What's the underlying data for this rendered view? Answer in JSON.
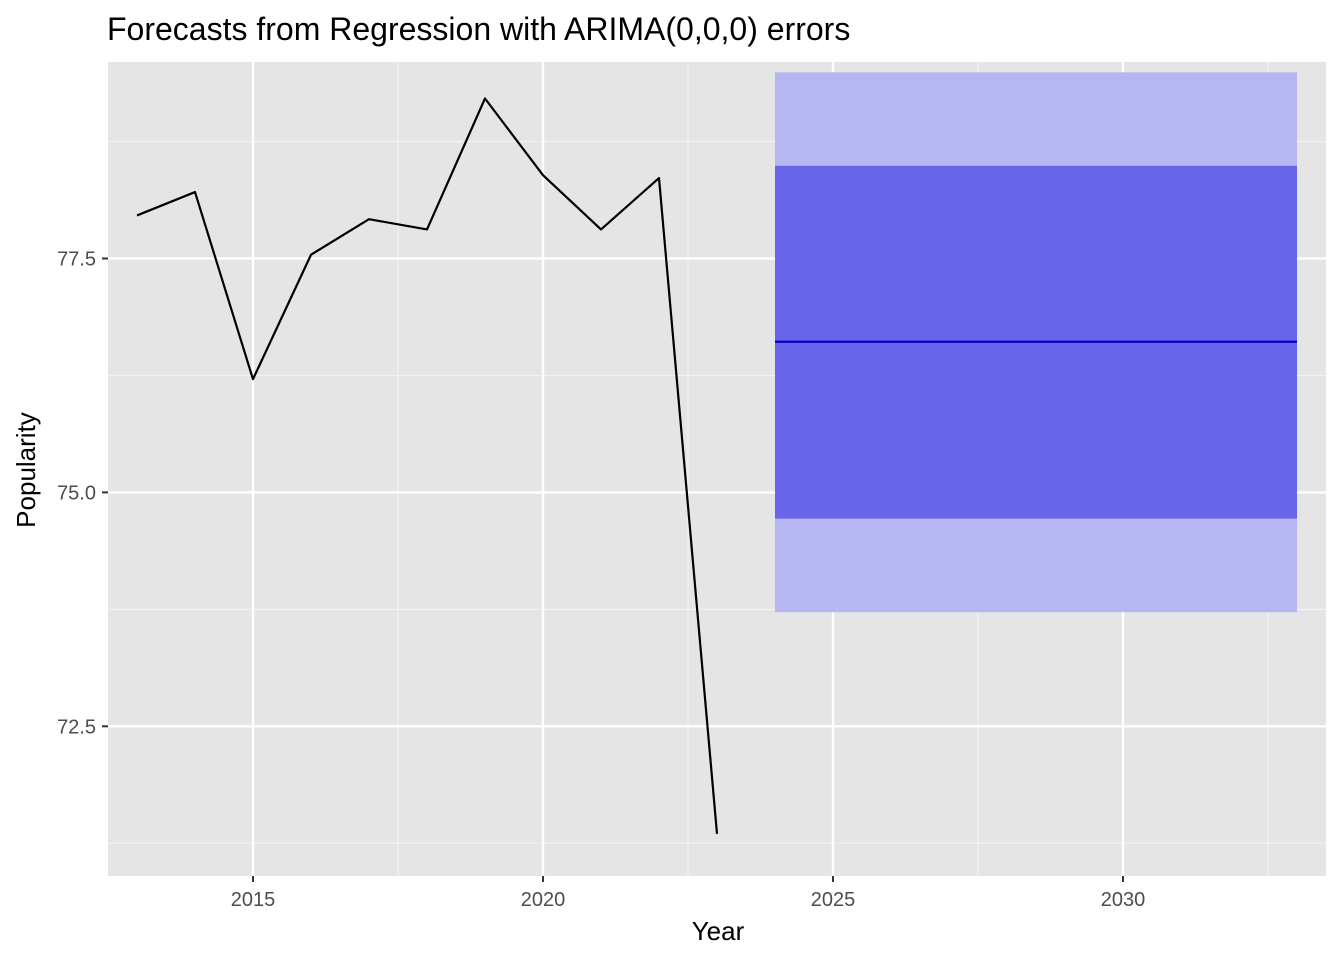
{
  "chart_data": {
    "type": "line",
    "title": "Forecasts from Regression with ARIMA(0,0,0) errors",
    "xlabel": "Year",
    "ylabel": "Popularity",
    "xlim": [
      2012.5,
      2033.5
    ],
    "ylim": [
      70.9,
      79.6
    ],
    "grid": true,
    "x_ticks": [
      2015,
      2020,
      2025,
      2030
    ],
    "x_tick_labels": [
      "2015",
      "2020",
      "2025",
      "2030"
    ],
    "y_ticks": [
      72.5,
      75.0,
      77.5
    ],
    "y_tick_labels": [
      "72.5",
      "75.0",
      "77.5"
    ],
    "series": [
      {
        "kind": "observed",
        "x": [
          2013,
          2014,
          2015,
          2016,
          2017,
          2018,
          2019,
          2020,
          2021,
          2022,
          2023
        ],
        "values": [
          77.96,
          78.21,
          76.21,
          77.54,
          77.92,
          77.81,
          79.21,
          78.39,
          77.81,
          78.36,
          71.35
        ]
      },
      {
        "kind": "forecast_mean",
        "x": [
          2024,
          2033
        ],
        "values": [
          76.61,
          76.61
        ]
      }
    ],
    "intervals": [
      {
        "level": 95,
        "x": [
          2024,
          2033
        ],
        "lower": 73.72,
        "upper": 79.49
      },
      {
        "level": 80,
        "x": [
          2024,
          2033
        ],
        "lower": 74.72,
        "upper": 78.49
      }
    ],
    "colors": {
      "panel_bg": "#e5e5e5",
      "grid_major": "#ffffff",
      "grid_minor": "#f2f2f2",
      "observed_line": "#000000",
      "forecast_line": "#0000cc",
      "band_95": "#b6b6f3",
      "band_80": "#6965ea"
    }
  }
}
